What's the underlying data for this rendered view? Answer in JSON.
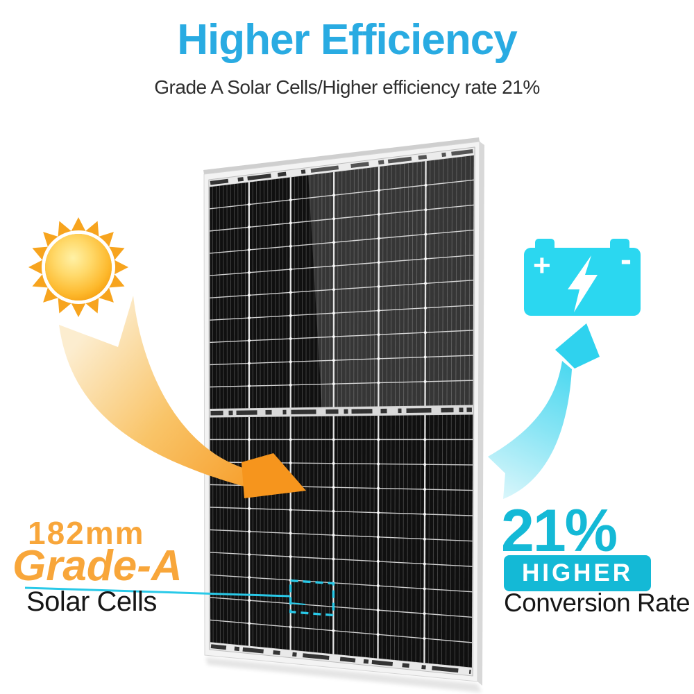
{
  "header": {
    "title": "Higher Efficiency",
    "subtitle": "Grade A Solar Cells/Higher efficiency rate 21%"
  },
  "left_callout": {
    "size_label": "182mm",
    "grade_label": "Grade-A",
    "cells_label": "Solar Cells"
  },
  "right_callout": {
    "percent": "21%",
    "badge_label": "HIGHER",
    "rate_label": "Conversion Rate"
  },
  "battery_icon": {
    "plus_symbol": "+",
    "minus_symbol": "-"
  },
  "panel": {
    "columns": 6,
    "rows_per_half": 10,
    "halves": 2,
    "busbars_per_cell": 10
  },
  "icons": {
    "sun": "sun-icon",
    "battery": "battery-icon",
    "lightning": "lightning-bolt-icon",
    "sun_arrow": "sunlight-arrow",
    "energy_arrow": "energy-up-arrow",
    "highlight": "cell-highlight-box"
  },
  "colors": {
    "title_blue": "#29ABE2",
    "accent_cyan": "#14B9D6",
    "battery_cyan": "#2BD7F0",
    "highlight_cyan": "#29C9E8",
    "callout_orange": "#F8A63A",
    "arrow_orange": "#F6951D",
    "sun_orange": "#F7A41E",
    "text_dark": "#2E2E2E",
    "panel_cell_black": "#101010",
    "panel_frame_gray": "#F3F3F3"
  }
}
